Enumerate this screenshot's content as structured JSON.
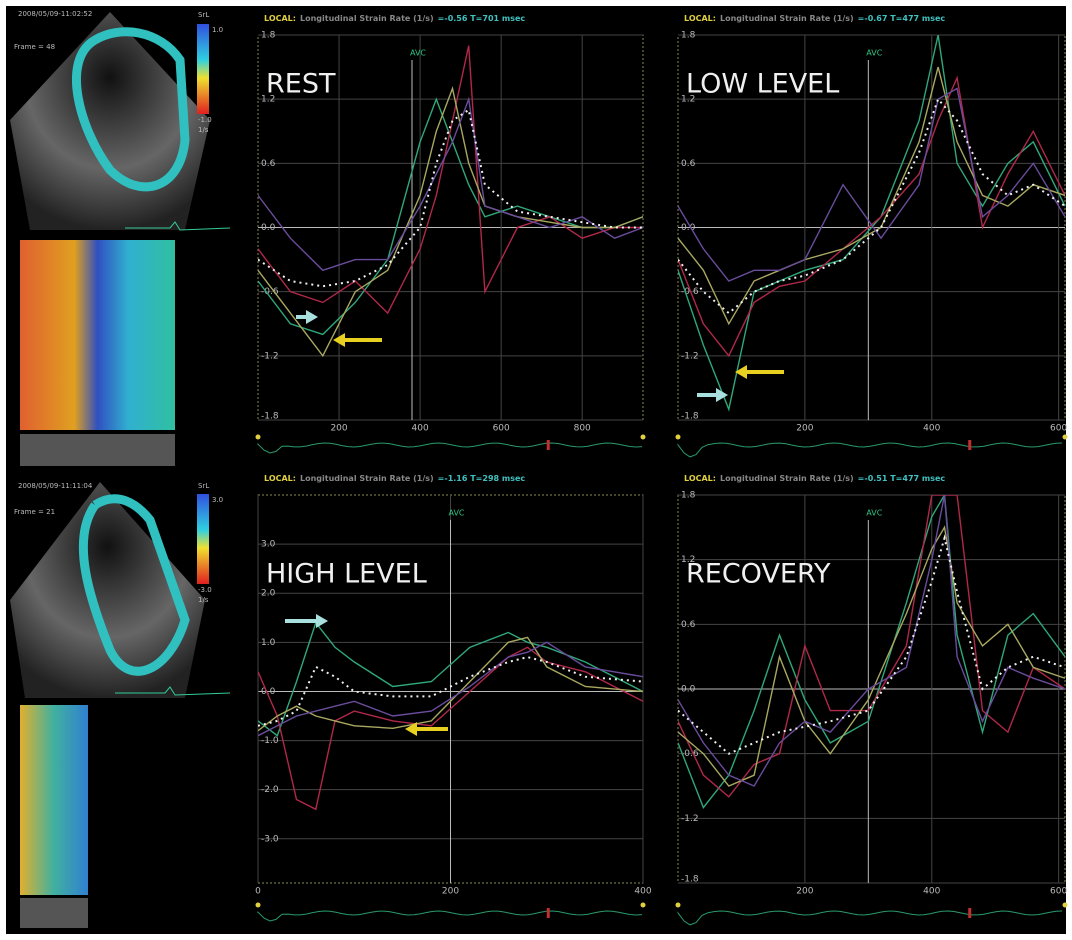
{
  "echo_panels": [
    {
      "timestamp": "2008/05/09-11:02:52",
      "frame": "Frame = 48",
      "scale_title": "SrL",
      "scale_max": "1.0",
      "scale_min": "-1.0",
      "unit": "1/s"
    },
    {
      "timestamp": "2008/05/09-11:11:04",
      "frame": "Frame = 21",
      "scale_title": "SrL",
      "scale_max": "3.0",
      "scale_min": "-3.0",
      "unit": "1/s"
    }
  ],
  "chart_data": [
    {
      "type": "line",
      "title": "REST",
      "header": {
        "label": "LOCAL:",
        "title": "Longitudinal Strain Rate (1/s)",
        "reading": "=-0.56 T=701 msec"
      },
      "annotations": [
        {
          "text": "AVC",
          "x": 380
        }
      ],
      "x": [
        0,
        80,
        160,
        240,
        320,
        400,
        440,
        480,
        520,
        560,
        640,
        720,
        800,
        880,
        950
      ],
      "xlim": [
        0,
        950
      ],
      "xticks": [
        200,
        400,
        600,
        800
      ],
      "ylim": [
        -1.8,
        1.8
      ],
      "yticks": [
        1.8,
        1.2,
        0.6,
        {
          "value": 0,
          "label": "0.0"
        },
        -0.6,
        -1.2,
        -1.8
      ],
      "grid": true,
      "series": [
        {
          "color": "#2fa87a",
          "values": [
            -0.5,
            -0.9,
            -1.0,
            -0.7,
            -0.3,
            0.8,
            1.2,
            0.8,
            0.4,
            0.1,
            0.2,
            0.1,
            0.0,
            0.0,
            0.1
          ]
        },
        {
          "color": "#b0284a",
          "values": [
            -0.2,
            -0.6,
            -0.7,
            -0.5,
            -0.8,
            -0.2,
            0.3,
            1.0,
            1.7,
            -0.6,
            0.0,
            0.1,
            -0.1,
            0.0,
            0.0
          ]
        },
        {
          "color": "#a8a860",
          "values": [
            -0.4,
            -0.8,
            -1.2,
            -0.6,
            -0.4,
            0.3,
            0.9,
            1.3,
            0.6,
            0.2,
            0.1,
            0.05,
            0.0,
            0.0,
            0.1
          ]
        },
        {
          "color": "#6a4c9c",
          "values": [
            0.3,
            -0.1,
            -0.4,
            -0.3,
            -0.3,
            0.2,
            0.5,
            0.8,
            1.2,
            0.2,
            0.1,
            0.0,
            0.1,
            -0.1,
            0.0
          ]
        },
        {
          "color": "#f0f0f0",
          "style": "dotted",
          "values": [
            -0.3,
            -0.5,
            -0.55,
            -0.5,
            -0.35,
            0.0,
            0.6,
            1.0,
            1.1,
            0.4,
            0.15,
            0.1,
            0.05,
            0.0,
            0.0
          ]
        }
      ]
    },
    {
      "type": "line",
      "title": "LOW LEVEL",
      "header": {
        "label": "LOCAL:",
        "title": "Longitudinal Strain Rate (1/s)",
        "reading": "=-0.67 T=477 msec"
      },
      "annotations": [
        {
          "text": "AVC",
          "x": 300
        }
      ],
      "x": [
        0,
        40,
        80,
        120,
        160,
        200,
        260,
        320,
        380,
        410,
        440,
        480,
        520,
        560,
        610
      ],
      "xlim": [
        0,
        610
      ],
      "xticks": [
        200,
        400,
        600
      ],
      "ylim": [
        -1.8,
        1.8
      ],
      "yticks": [
        1.8,
        1.2,
        0.6,
        {
          "value": 0,
          "label": "0.0"
        },
        -0.6,
        -1.2,
        -1.8
      ],
      "grid": true,
      "series": [
        {
          "color": "#2fa87a",
          "values": [
            -0.4,
            -1.1,
            -1.7,
            -0.6,
            -0.5,
            -0.4,
            -0.3,
            0.1,
            1.0,
            1.8,
            0.6,
            0.2,
            0.6,
            0.8,
            0.2
          ]
        },
        {
          "color": "#b0284a",
          "values": [
            -0.3,
            -0.9,
            -1.2,
            -0.7,
            -0.55,
            -0.5,
            -0.2,
            0.1,
            0.5,
            1.0,
            1.4,
            0.0,
            0.5,
            0.9,
            0.3
          ]
        },
        {
          "color": "#a8a860",
          "values": [
            -0.1,
            -0.4,
            -0.9,
            -0.5,
            -0.4,
            -0.3,
            -0.2,
            0.0,
            0.8,
            1.5,
            0.8,
            0.3,
            0.2,
            0.4,
            0.3
          ]
        },
        {
          "color": "#6a4c9c",
          "values": [
            0.2,
            -0.2,
            -0.5,
            -0.4,
            -0.4,
            -0.3,
            0.4,
            -0.1,
            0.4,
            1.2,
            1.3,
            0.1,
            0.3,
            0.6,
            0.1
          ]
        },
        {
          "color": "#f0f0f0",
          "style": "dotted",
          "values": [
            -0.3,
            -0.6,
            -0.8,
            -0.6,
            -0.5,
            -0.45,
            -0.3,
            0.0,
            0.7,
            1.2,
            1.0,
            0.5,
            0.3,
            0.4,
            0.2
          ]
        }
      ]
    },
    {
      "type": "line",
      "title": "HIGH LEVEL",
      "header": {
        "label": "LOCAL:",
        "title": "Longitudinal Strain Rate (1/s)",
        "reading": "=-1.16 T=298 msec"
      },
      "annotations": [
        {
          "text": "AVC",
          "x": 200
        }
      ],
      "x": [
        0,
        20,
        40,
        60,
        80,
        100,
        140,
        180,
        220,
        260,
        280,
        300,
        340,
        400
      ],
      "xlim": [
        0,
        400
      ],
      "xticks": [
        0,
        200,
        400
      ],
      "ylim": [
        -3.9,
        4.0
      ],
      "yticks": [
        {
          "value": 3,
          "label": "3.0"
        },
        {
          "value": 2,
          "label": "2.0"
        },
        {
          "value": 1,
          "label": "1.0"
        },
        {
          "value": 0,
          "label": "0.0"
        },
        {
          "value": -1,
          "label": "-1.0"
        },
        {
          "value": -2,
          "label": "-2.0"
        },
        {
          "value": -3,
          "label": "-3.0"
        }
      ],
      "grid": true,
      "series": [
        {
          "color": "#2fa87a",
          "values": [
            -0.6,
            -0.9,
            0.2,
            1.4,
            0.9,
            0.6,
            0.1,
            0.2,
            0.9,
            1.2,
            1.0,
            0.9,
            0.6,
            0.0
          ]
        },
        {
          "color": "#b0284a",
          "values": [
            0.4,
            -0.5,
            -2.2,
            -2.4,
            -0.6,
            -0.4,
            -0.6,
            -0.7,
            0.0,
            0.7,
            0.9,
            0.6,
            0.4,
            -0.2
          ]
        },
        {
          "color": "#a8a860",
          "values": [
            -0.8,
            -0.5,
            -0.3,
            -0.5,
            -0.6,
            -0.7,
            -0.75,
            -0.6,
            0.2,
            1.0,
            1.1,
            0.5,
            0.1,
            0.0
          ]
        },
        {
          "color": "#6a4c9c",
          "values": [
            -0.9,
            -0.7,
            -0.5,
            -0.4,
            -0.3,
            -0.2,
            -0.5,
            -0.4,
            0.1,
            0.7,
            0.8,
            1.0,
            0.5,
            0.3
          ]
        },
        {
          "color": "#f0f0f0",
          "style": "dotted",
          "values": [
            -0.7,
            -0.6,
            -0.4,
            0.5,
            0.3,
            0.0,
            -0.1,
            -0.1,
            0.3,
            0.6,
            0.7,
            0.6,
            0.3,
            0.2
          ]
        }
      ]
    },
    {
      "type": "line",
      "title": "RECOVERY",
      "header": {
        "label": "LOCAL:",
        "title": "Longitudinal Strain Rate (1/s)",
        "reading": "=-0.51 T=477 msec"
      },
      "annotations": [
        {
          "text": "AVC",
          "x": 300
        }
      ],
      "x": [
        0,
        40,
        80,
        120,
        160,
        200,
        240,
        300,
        360,
        400,
        420,
        440,
        480,
        520,
        560,
        610
      ],
      "xlim": [
        0,
        610
      ],
      "xticks": [
        200,
        400,
        600
      ],
      "ylim": [
        -1.8,
        1.8
      ],
      "yticks": [
        1.8,
        1.2,
        0.6,
        {
          "value": 0,
          "label": "0.0"
        },
        -0.6,
        -1.2,
        -1.8
      ],
      "grid": true,
      "series": [
        {
          "color": "#2fa87a",
          "values": [
            -0.5,
            -1.1,
            -0.8,
            -0.2,
            0.5,
            -0.1,
            -0.5,
            -0.3,
            0.8,
            1.6,
            1.8,
            0.5,
            -0.4,
            0.5,
            0.7,
            0.3
          ]
        },
        {
          "color": "#b0284a",
          "values": [
            -0.3,
            -0.8,
            -1.0,
            -0.7,
            -0.6,
            0.4,
            -0.2,
            -0.2,
            0.4,
            1.8,
            1.8,
            1.8,
            -0.2,
            -0.4,
            0.2,
            0.0
          ]
        },
        {
          "color": "#a8a860",
          "values": [
            -0.4,
            -0.6,
            -0.9,
            -0.8,
            0.3,
            -0.3,
            -0.6,
            -0.1,
            0.7,
            1.3,
            1.5,
            0.8,
            0.4,
            0.6,
            0.2,
            0.1
          ]
        },
        {
          "color": "#6a4c9c",
          "values": [
            -0.1,
            -0.5,
            -0.8,
            -0.9,
            -0.5,
            -0.3,
            -0.4,
            0.0,
            0.2,
            1.2,
            1.8,
            0.3,
            -0.3,
            0.2,
            0.1,
            0.0
          ]
        },
        {
          "color": "#f0f0f0",
          "style": "dotted",
          "values": [
            -0.2,
            -0.4,
            -0.6,
            -0.5,
            -0.4,
            -0.35,
            -0.3,
            -0.2,
            0.3,
            1.0,
            1.4,
            0.9,
            0.0,
            0.2,
            0.3,
            0.2
          ]
        }
      ]
    }
  ]
}
